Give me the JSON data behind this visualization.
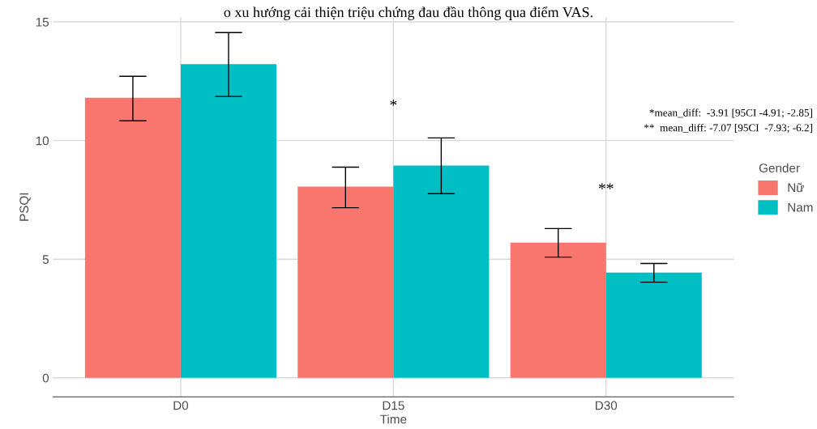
{
  "chart_data": {
    "type": "bar",
    "xlabel": "Time",
    "ylabel": "PSQI",
    "legend_title": "Gender",
    "categories": [
      "D0",
      "D15",
      "D30"
    ],
    "series": [
      {
        "name": "Nữ",
        "color": "#f8766d",
        "values": [
          11.8,
          8.06,
          5.7
        ],
        "errors": [
          [
            10.83,
            12.71
          ],
          [
            7.17,
            8.88
          ],
          [
            5.09,
            6.29
          ]
        ]
      },
      {
        "name": "Nam",
        "color": "#00bfc4",
        "values": [
          13.22,
          8.95,
          4.44
        ],
        "errors": [
          [
            11.86,
            14.55
          ],
          [
            7.76,
            10.11
          ],
          [
            4.03,
            4.82
          ]
        ]
      }
    ],
    "ylim": [
      -0.8,
      15.2
    ],
    "yticks": [
      0,
      5,
      10,
      15
    ],
    "grid": true,
    "legend": "right",
    "annotations": [
      "*",
      "**",
      "*mean_diff:  -3.91 [95CI -4.91; -2.85]",
      "**  mean_diff: -7.07 [95CI  -7.93; -6.2]",
      "o xu hướng cải thiện triệu chứng đau đầu thông qua điểm VAS."
    ]
  }
}
